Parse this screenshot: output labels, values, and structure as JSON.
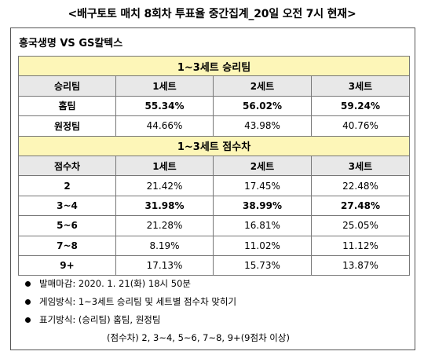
{
  "title": "<배구토토 매치 8회차 투표율 중간집계_20일 오전 7시 현재>",
  "match": "흥국생명 VS GS칼텍스",
  "win_section": {
    "title": "1~3세트 승리팀",
    "headers": [
      "승리팀",
      "1세트",
      "2세트",
      "3세트"
    ],
    "rows": [
      {
        "label": "홈팀",
        "values": [
          "55.34%",
          "56.02%",
          "59.24%"
        ],
        "bold": [
          true,
          true,
          true
        ]
      },
      {
        "label": "원정팀",
        "values": [
          "44.66%",
          "43.98%",
          "40.76%"
        ],
        "bold": [
          false,
          false,
          false
        ]
      }
    ]
  },
  "margin_section": {
    "title": "1~3세트 점수차",
    "headers": [
      "점수차",
      "1세트",
      "2세트",
      "3세트"
    ],
    "rows": [
      {
        "label": "2",
        "values": [
          "21.42%",
          "17.45%",
          "22.48%"
        ],
        "bold": [
          false,
          false,
          false
        ]
      },
      {
        "label": "3~4",
        "values": [
          "31.98%",
          "38.99%",
          "27.48%"
        ],
        "bold": [
          true,
          true,
          true
        ]
      },
      {
        "label": "5~6",
        "values": [
          "21.28%",
          "16.81%",
          "25.05%"
        ],
        "bold": [
          false,
          false,
          false
        ]
      },
      {
        "label": "7~8",
        "values": [
          "8.19%",
          "11.02%",
          "11.12%"
        ],
        "bold": [
          false,
          false,
          false
        ]
      },
      {
        "label": "9+",
        "values": [
          "17.13%",
          "15.73%",
          "13.87%"
        ],
        "bold": [
          false,
          false,
          false
        ]
      }
    ]
  },
  "notes": [
    "발매마감: 2020. 1. 21(화) 18시 50분",
    "게임방식: 1~3세트 승리팀 및 세트별 점수차 맞히기",
    "표기방식: (승리팀) 홈팀, 원정팀"
  ],
  "note_sub": "(점수차) 2, 3~4, 5~6, 7~8, 9+(9점차 이상)"
}
